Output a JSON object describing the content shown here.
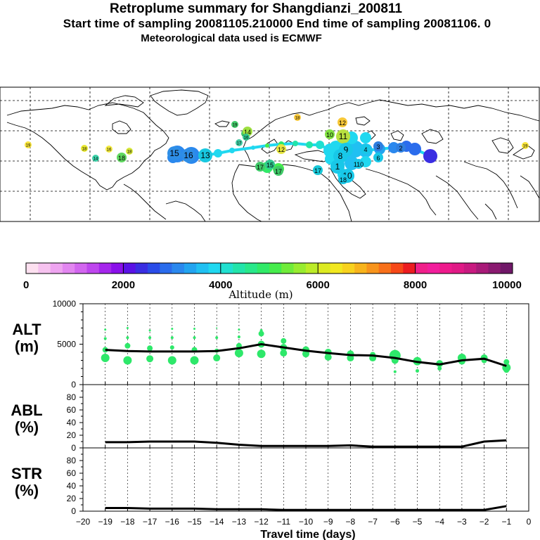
{
  "titles": {
    "line1": "Retroplume summary for Shangdianzi_200811",
    "line2": "Start time of sampling 20081105.210000      End time of sampling 20081106.     0",
    "line3": "Meteorological data used is ECMWF"
  },
  "map": {
    "labels": [
      {
        "text": "19",
        "color": "#f7e33a",
        "size": "s"
      },
      {
        "text": "18",
        "color": "#e8e830",
        "size": "s"
      },
      {
        "text": "16",
        "color": "#f3ea40",
        "size": "s"
      },
      {
        "text": "18",
        "color": "#d8e83a",
        "size": "s"
      },
      {
        "text": "18",
        "color": "#60d860",
        "size": "m"
      },
      {
        "text": "14",
        "color": "#3ad1a8",
        "size": "s"
      },
      {
        "text": "15",
        "color": "#2e8ee6",
        "size": "l"
      },
      {
        "text": "16",
        "color": "#2e8ee6",
        "size": "l"
      },
      {
        "text": "13",
        "color": "#18c8e0",
        "size": "l"
      },
      {
        "text": "19",
        "color": "#40c868",
        "size": "s"
      },
      {
        "text": "18",
        "color": "#40c868",
        "size": "s"
      },
      {
        "text": "14",
        "color": "#9ee040",
        "size": "m"
      },
      {
        "text": "17",
        "color": "#40c8a0",
        "size": "s"
      },
      {
        "text": "12",
        "color": "#e6e640",
        "size": "m"
      },
      {
        "text": "16",
        "color": "#30c890",
        "size": "s"
      },
      {
        "text": "17",
        "color": "#40c868",
        "size": "m"
      },
      {
        "text": "15",
        "color": "#30c890",
        "size": "m"
      },
      {
        "text": "17",
        "color": "#40c868",
        "size": "m"
      },
      {
        "text": "17",
        "color": "#18c8d8",
        "size": "m"
      },
      {
        "text": "18",
        "color": "#f8c838",
        "size": "s"
      },
      {
        "text": "12",
        "color": "#f8c838",
        "size": "m"
      },
      {
        "text": "10",
        "color": "#80e040",
        "size": "m"
      },
      {
        "text": "11",
        "color": "#b8e040",
        "size": "l"
      },
      {
        "text": "9",
        "color": "#18c8e8",
        "size": "l"
      },
      {
        "text": "8",
        "color": "#18c8e8",
        "size": "l"
      },
      {
        "text": "4",
        "color": "#18c8e8",
        "size": "m"
      },
      {
        "text": "3",
        "color": "#2e7ee0",
        "size": "m"
      },
      {
        "text": "2",
        "color": "#2e7ee0",
        "size": "m"
      },
      {
        "text": "6",
        "color": "#18c8e8",
        "size": "m"
      },
      {
        "text": "1",
        "color": "#18c8e8",
        "size": "l"
      },
      {
        "text": "110",
        "color": "#18c8e8",
        "size": "m"
      },
      {
        "text": "10",
        "color": "#18c8e8",
        "size": "l"
      },
      {
        "text": "18",
        "color": "#18c8e8",
        "size": "m"
      },
      {
        "text": "19",
        "color": "#f7e33a",
        "size": "s"
      }
    ]
  },
  "colorbar": {
    "ticks": [
      "0",
      "2000",
      "4000",
      "6000",
      "8000",
      "10000"
    ],
    "label": "Altitude (m)",
    "colors": [
      "#fde0f0",
      "#f6c2ef",
      "#eea4f0",
      "#e286f0",
      "#d266ef",
      "#be46ee",
      "#a526ec",
      "#8a10ea",
      "#5a12e6",
      "#3a2ee2",
      "#2a4ce8",
      "#2a6cec",
      "#2a88ee",
      "#22a4f0",
      "#20c0f2",
      "#20d8f0",
      "#20e0d0",
      "#22e4aa",
      "#28e88a",
      "#30ea68",
      "#46ec4c",
      "#70ec3a",
      "#98ec30",
      "#bcec28",
      "#dcea22",
      "#f2e820",
      "#f8d21e",
      "#f8b41c",
      "#f8941c",
      "#f8701a",
      "#f64818",
      "#ec1c20",
      "#f0208a",
      "#f21e9c",
      "#ee1a8c",
      "#e01a86",
      "#c81a80",
      "#a81a78",
      "#8a1a70",
      "#701868"
    ]
  },
  "chart_data": [
    {
      "type": "scatter",
      "title": "",
      "ylabel": "ALT\n(m)",
      "ylabel_lines": [
        "ALT",
        "(m)"
      ],
      "xlim": [
        -20,
        0
      ],
      "ylim": [
        0,
        10000
      ],
      "yticks": [
        "10000",
        "5000",
        "0"
      ],
      "series": [
        {
          "name": "median altitude",
          "x": [
            -19,
            -18,
            -17,
            -16,
            -15,
            -14,
            -13,
            -12,
            -11,
            -10,
            -9,
            -8,
            -7,
            -6,
            -5,
            -4,
            -3,
            -2,
            -1
          ],
          "values": [
            4300,
            4150,
            4100,
            4100,
            4100,
            4150,
            4500,
            5000,
            4600,
            4200,
            3900,
            3650,
            3600,
            3300,
            2800,
            2500,
            3000,
            3200,
            2300
          ]
        },
        {
          "name": "clusters",
          "points": [
            {
              "x": -19,
              "y": 3300,
              "r": 6
            },
            {
              "x": -19,
              "y": 4300,
              "r": 4
            },
            {
              "x": -19,
              "y": 5700,
              "r": 2
            },
            {
              "x": -19,
              "y": 6800,
              "r": 1.5
            },
            {
              "x": -18,
              "y": 3000,
              "r": 6
            },
            {
              "x": -18,
              "y": 4800,
              "r": 4
            },
            {
              "x": -18,
              "y": 5800,
              "r": 2
            },
            {
              "x": -18,
              "y": 7000,
              "r": 1.5
            },
            {
              "x": -17,
              "y": 3200,
              "r": 5
            },
            {
              "x": -17,
              "y": 4500,
              "r": 4
            },
            {
              "x": -17,
              "y": 5800,
              "r": 2
            },
            {
              "x": -17,
              "y": 6700,
              "r": 1.5
            },
            {
              "x": -16,
              "y": 3000,
              "r": 6
            },
            {
              "x": -16,
              "y": 4600,
              "r": 3
            },
            {
              "x": -16,
              "y": 5800,
              "r": 2
            },
            {
              "x": -16,
              "y": 6900,
              "r": 1.5
            },
            {
              "x": -15,
              "y": 3000,
              "r": 6
            },
            {
              "x": -15,
              "y": 4300,
              "r": 4
            },
            {
              "x": -15,
              "y": 5800,
              "r": 2
            },
            {
              "x": -15,
              "y": 6900,
              "r": 1.5
            },
            {
              "x": -14,
              "y": 3300,
              "r": 5
            },
            {
              "x": -14,
              "y": 4200,
              "r": 3
            },
            {
              "x": -14,
              "y": 5800,
              "r": 2
            },
            {
              "x": -14,
              "y": 7000,
              "r": 1
            },
            {
              "x": -13,
              "y": 3900,
              "r": 6
            },
            {
              "x": -13,
              "y": 4800,
              "r": 4
            },
            {
              "x": -13,
              "y": 5900,
              "r": 2
            },
            {
              "x": -13,
              "y": 6800,
              "r": 1.5
            },
            {
              "x": -12,
              "y": 3800,
              "r": 6
            },
            {
              "x": -12,
              "y": 5000,
              "r": 5
            },
            {
              "x": -12,
              "y": 6300,
              "r": 4
            },
            {
              "x": -12,
              "y": 6700,
              "r": 2
            },
            {
              "x": -11,
              "y": 3900,
              "r": 5
            },
            {
              "x": -11,
              "y": 4600,
              "r": 5
            },
            {
              "x": -11,
              "y": 5400,
              "r": 4
            },
            {
              "x": -10,
              "y": 3800,
              "r": 5
            },
            {
              "x": -10,
              "y": 4300,
              "r": 5
            },
            {
              "x": -9,
              "y": 3400,
              "r": 5
            },
            {
              "x": -9,
              "y": 4000,
              "r": 5
            },
            {
              "x": -8,
              "y": 3300,
              "r": 5
            },
            {
              "x": -8,
              "y": 3800,
              "r": 5
            },
            {
              "x": -7,
              "y": 3300,
              "r": 5
            },
            {
              "x": -7,
              "y": 3700,
              "r": 4
            },
            {
              "x": -6,
              "y": 3600,
              "r": 8
            },
            {
              "x": -6,
              "y": 3000,
              "r": 5
            },
            {
              "x": -6,
              "y": 1600,
              "r": 2
            },
            {
              "x": -5,
              "y": 2900,
              "r": 6
            },
            {
              "x": -5,
              "y": 1700,
              "r": 2.5
            },
            {
              "x": -4,
              "y": 2600,
              "r": 5
            },
            {
              "x": -4,
              "y": 2000,
              "r": 3
            },
            {
              "x": -3,
              "y": 3300,
              "r": 6
            },
            {
              "x": -3,
              "y": 2900,
              "r": 5
            },
            {
              "x": -2,
              "y": 3300,
              "r": 5
            },
            {
              "x": -2,
              "y": 3000,
              "r": 4
            },
            {
              "x": -1,
              "y": 2800,
              "r": 4
            },
            {
              "x": -1,
              "y": 2100,
              "r": 6
            },
            {
              "x": -1,
              "y": 1800,
              "r": 4
            }
          ]
        }
      ]
    },
    {
      "type": "line",
      "ylabel_lines": [
        "ABL",
        "(%)"
      ],
      "xlim": [
        -20,
        0
      ],
      "ylim": [
        0,
        100
      ],
      "yticks": [
        "80",
        "60",
        "40",
        "20",
        "0"
      ],
      "series": [
        {
          "name": "ABL",
          "x": [
            -19,
            -18,
            -17,
            -16,
            -15,
            -14,
            -13,
            -12,
            -11,
            -10,
            -9,
            -8,
            -7,
            -6,
            -5,
            -4,
            -3,
            -2,
            -1
          ],
          "values": [
            9,
            9,
            10,
            10,
            10,
            8,
            5,
            3,
            3,
            3,
            3,
            4,
            2,
            2,
            2,
            2,
            2,
            10,
            12
          ]
        }
      ]
    },
    {
      "type": "line",
      "ylabel_lines": [
        "STR",
        "(%)"
      ],
      "xlabel": "Travel time (days)",
      "xlim": [
        -20,
        0
      ],
      "ylim": [
        0,
        100
      ],
      "yticks": [
        "80",
        "60",
        "40",
        "20",
        "0"
      ],
      "xticks": [
        "−20",
        "−19",
        "−18",
        "−17",
        "−16",
        "−15",
        "−14",
        "−13",
        "−12",
        "−11",
        "−10",
        "−9",
        "−8",
        "−7",
        "−6",
        "−5",
        "−4",
        "−3",
        "−2",
        "−1",
        "0"
      ],
      "series": [
        {
          "name": "STR",
          "x": [
            -19,
            -18,
            -17,
            -16,
            -15,
            -14,
            -13,
            -12,
            -11,
            -10,
            -9,
            -8,
            -7,
            -6,
            -5,
            -4,
            -3,
            -2,
            -1
          ],
          "values": [
            5,
            5,
            4,
            4,
            4,
            3,
            3,
            3,
            2,
            2,
            2,
            2,
            2,
            2,
            2,
            2,
            2,
            2,
            8
          ]
        }
      ]
    }
  ]
}
